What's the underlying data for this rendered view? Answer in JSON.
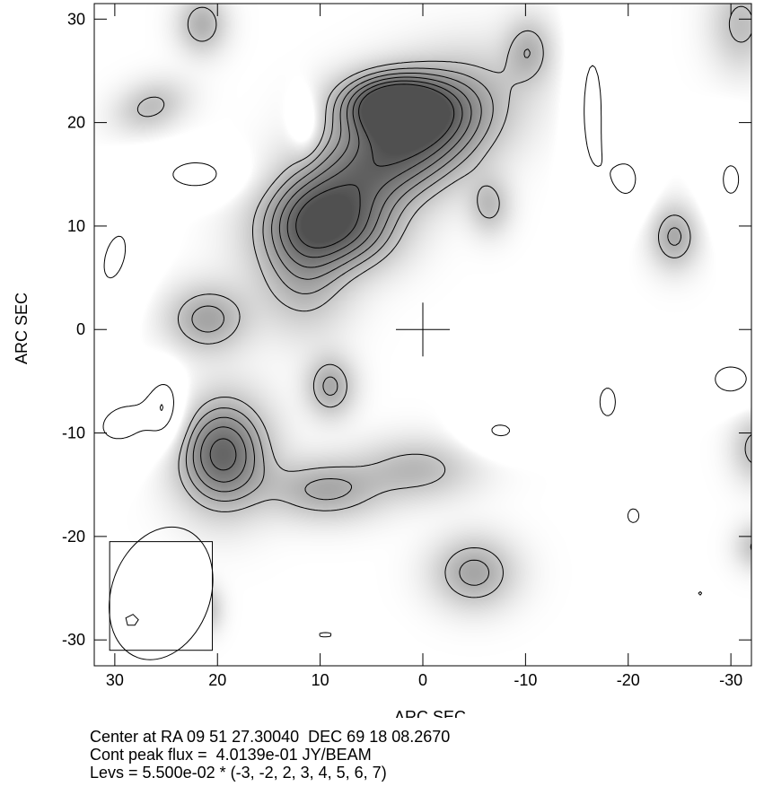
{
  "chart_data": {
    "type": "contour",
    "xlabel": "ARC SEC",
    "ylabel": "ARC SEC",
    "xlim": [
      32,
      -32
    ],
    "ylim": [
      -32.5,
      31.5
    ],
    "x_ticks": [
      30,
      20,
      10,
      0,
      -10,
      -20,
      -30
    ],
    "y_ticks": [
      30,
      20,
      10,
      0,
      -10,
      -20,
      -30
    ],
    "center_marker": [
      0,
      0
    ],
    "beam": {
      "box": [
        [
          30.5,
          -31
        ],
        [
          20.5,
          -20.5
        ]
      ],
      "ellipse_center": [
        25.5,
        -25.5
      ],
      "major": 6.6,
      "minor": 4.8
    },
    "contour_levels_multiplier": [
      -3,
      -2,
      2,
      3,
      4,
      5,
      6,
      7
    ],
    "level_unit": 0.055,
    "components": [
      {
        "cx": 3,
        "cy": 21.8,
        "sx": 3.5,
        "sy": 2.0,
        "rot": 0,
        "peak": 0.4,
        "neg": false
      },
      {
        "cx": -1,
        "cy": 19.5,
        "sx": 5.5,
        "sy": 3.5,
        "rot": -30,
        "peak": 0.28,
        "neg": false
      },
      {
        "cx": 6.5,
        "cy": 14.5,
        "sx": 6.5,
        "sy": 3.6,
        "rot": -40,
        "peak": 0.25,
        "neg": false
      },
      {
        "cx": 10.5,
        "cy": 10.2,
        "sx": 3.5,
        "sy": 3.0,
        "rot": 0,
        "peak": 0.24,
        "neg": false
      },
      {
        "cx": 11.5,
        "cy": 4.5,
        "sx": 3.0,
        "sy": 3.5,
        "rot": 0,
        "peak": 0.13,
        "neg": false
      },
      {
        "cx": 5.5,
        "cy": 9.0,
        "sx": 3.0,
        "sy": 2.5,
        "rot": 0,
        "peak": 0.1,
        "neg": false
      },
      {
        "cx": -10.3,
        "cy": 27.0,
        "sx": 1.6,
        "sy": 2.2,
        "rot": 0,
        "peak": 0.14,
        "neg": false
      },
      {
        "cx": 21.5,
        "cy": 29.5,
        "sx": 1.6,
        "sy": 1.9,
        "rot": 0,
        "peak": 0.16,
        "neg": false
      },
      {
        "cx": 26.5,
        "cy": 21.5,
        "sx": 2.4,
        "sy": 1.6,
        "rot": -20,
        "peak": 0.13,
        "neg": false
      },
      {
        "cx": -6.5,
        "cy": 12.0,
        "sx": 1.4,
        "sy": 1.9,
        "rot": 0,
        "peak": 0.13,
        "neg": false
      },
      {
        "cx": -24.5,
        "cy": 9.0,
        "sx": 1.6,
        "sy": 2.1,
        "rot": 0,
        "peak": 0.18,
        "neg": false
      },
      {
        "cx": 21.0,
        "cy": 1.0,
        "sx": 2.7,
        "sy": 2.2,
        "rot": 0,
        "peak": 0.19,
        "neg": false
      },
      {
        "cx": 9.0,
        "cy": -5.5,
        "sx": 1.6,
        "sy": 2.0,
        "rot": 0,
        "peak": 0.18,
        "neg": false
      },
      {
        "cx": 19.5,
        "cy": -12.0,
        "sx": 3.0,
        "sy": 3.6,
        "rot": 0,
        "peak": 0.36,
        "neg": false
      },
      {
        "cx": 9.5,
        "cy": -15.5,
        "sx": 3.8,
        "sy": 2.0,
        "rot": 0,
        "peak": 0.18,
        "neg": false
      },
      {
        "cx": 0.5,
        "cy": -13.5,
        "sx": 3.8,
        "sy": 2.0,
        "rot": 0,
        "peak": 0.14,
        "neg": false
      },
      {
        "cx": -5,
        "cy": -23.5,
        "sx": 2.7,
        "sy": 2.3,
        "rot": 0,
        "peak": 0.19,
        "neg": false
      },
      {
        "cx": 21.0,
        "cy": -27.0,
        "sx": 1.0,
        "sy": 1.5,
        "rot": 0,
        "peak": 0.12,
        "neg": false
      },
      {
        "cx": -32.5,
        "cy": -11.5,
        "sx": 1.6,
        "sy": 2.2,
        "rot": 0,
        "peak": 0.14,
        "neg": false
      },
      {
        "cx": -32.5,
        "cy": -21.0,
        "sx": 1.4,
        "sy": 1.5,
        "rot": 0,
        "peak": 0.12,
        "neg": false
      },
      {
        "cx": -31,
        "cy": 29.5,
        "sx": 2.0,
        "sy": 3.0,
        "rot": 0,
        "peak": 0.13,
        "neg": false
      },
      {
        "cx": 22,
        "cy": 15.0,
        "sx": 3.0,
        "sy": 1.6,
        "rot": 0,
        "peak": 0.14,
        "neg": true
      },
      {
        "cx": 30,
        "cy": 7.0,
        "sx": 2.2,
        "sy": 5.0,
        "rot": 15,
        "peak": 0.12,
        "neg": true
      },
      {
        "cx": 29,
        "cy": -9.0,
        "sx": 3.8,
        "sy": 2.6,
        "rot": -20,
        "peak": 0.13,
        "neg": true
      },
      {
        "cx": 25,
        "cy": -7.5,
        "sx": 1.2,
        "sy": 2.5,
        "rot": 0,
        "peak": 0.12,
        "neg": true
      },
      {
        "cx": 11.5,
        "cy": 20.0,
        "sx": 1.0,
        "sy": 2.0,
        "rot": 0,
        "peak": 0.115,
        "neg": true
      },
      {
        "cx": -16.5,
        "cy": 21.5,
        "sx": 1.5,
        "sy": 7.5,
        "rot": 0,
        "peak": 0.13,
        "neg": true
      },
      {
        "cx": -20,
        "cy": 14.5,
        "sx": 1.6,
        "sy": 2.6,
        "rot": 0,
        "peak": 0.12,
        "neg": true
      },
      {
        "cx": -30,
        "cy": 14.5,
        "sx": 1.8,
        "sy": 3.2,
        "rot": 0,
        "peak": 0.12,
        "neg": true
      },
      {
        "cx": -18,
        "cy": -7.0,
        "sx": 1.8,
        "sy": 3.2,
        "rot": 0,
        "peak": 0.12,
        "neg": true
      },
      {
        "cx": -30,
        "cy": -4.8,
        "sx": 2.2,
        "sy": 1.7,
        "rot": 0,
        "peak": 0.14,
        "neg": true
      },
      {
        "cx": -7.5,
        "cy": -9.8,
        "sx": 2.5,
        "sy": 1.5,
        "rot": 0,
        "peak": 0.12,
        "neg": true
      },
      {
        "cx": -20.5,
        "cy": -18.0,
        "sx": 1.3,
        "sy": 1.6,
        "rot": 0,
        "peak": 0.12,
        "neg": true
      },
      {
        "cx": 9.5,
        "cy": -29.5,
        "sx": 2.2,
        "sy": 0.8,
        "rot": 0,
        "peak": 0.115,
        "neg": true
      },
      {
        "cx": -27,
        "cy": -25.5,
        "sx": 0.7,
        "sy": 0.7,
        "rot": 0,
        "peak": 0.115,
        "neg": true
      }
    ]
  },
  "info": {
    "line1": "Center at RA 09 51 27.30040  DEC 69 18 08.2670",
    "line2": "Cont peak flux =  4.0139e-01 JY/BEAM",
    "line3": "Levs = 5.500e-02 * (-3, -2, 2, 3, 4, 5, 6, 7)"
  }
}
